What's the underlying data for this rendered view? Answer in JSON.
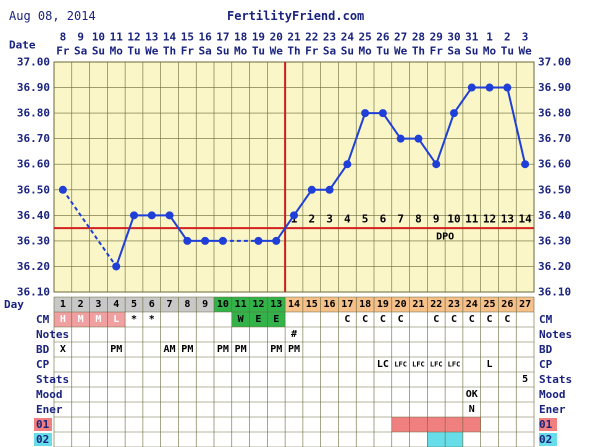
{
  "header": {
    "date": "Aug 08, 2014",
    "brand": "FertilityFriend.com"
  },
  "labels": {
    "date": "Date",
    "day": "Day",
    "dpo": "DPO",
    "rows": [
      "CM",
      "Notes",
      "BD",
      "CP",
      "Stats",
      "Mood",
      "Ener",
      "01",
      "02"
    ]
  },
  "colors": {
    "grid_bg": "#faf6c8",
    "grid_line": "#6a6a3a",
    "temp_line": "#1f3fd6",
    "coverline": "#d32020",
    "ovulation_line": "#c81e1e",
    "day_gray": "#c8c8c8",
    "day_green": "#33b24a",
    "day_orange": "#f5c08a",
    "cm_pink": "#f0a0a0",
    "cm_green": "#33b24a",
    "cm_orange": "#f5c08a",
    "row01": "#f07f7f",
    "row02": "#66dde8"
  },
  "chart_data": {
    "type": "line",
    "title": "",
    "ylim": [
      36.1,
      37.0
    ],
    "y_ticks": [
      "37.00",
      "36.90",
      "36.80",
      "36.70",
      "36.60",
      "36.50",
      "36.40",
      "36.30",
      "36.20",
      "36.10"
    ],
    "coverline": 36.35,
    "ovulation_day": 13,
    "dates": [
      "8",
      "9",
      "10",
      "11",
      "12",
      "13",
      "14",
      "15",
      "16",
      "17",
      "18",
      "19",
      "20",
      "21",
      "22",
      "23",
      "24",
      "25",
      "26",
      "27",
      "28",
      "29",
      "30",
      "31",
      "1",
      "2",
      "3"
    ],
    "weekdays": [
      "Fr",
      "Sa",
      "Su",
      "Mo",
      "Tu",
      "We",
      "Th",
      "Fr",
      "Sa",
      "Su",
      "Mo",
      "Tu",
      "We",
      "Th",
      "Fr",
      "Sa",
      "Su",
      "Mo",
      "Tu",
      "We",
      "Th",
      "Fr",
      "Sa",
      "Su",
      "Mo",
      "Tu",
      "We"
    ],
    "cycle_days": [
      "1",
      "2",
      "3",
      "4",
      "5",
      "6",
      "7",
      "8",
      "9",
      "10",
      "11",
      "12",
      "13",
      "14",
      "15",
      "16",
      "17",
      "18",
      "19",
      "20",
      "21",
      "22",
      "23",
      "24",
      "25",
      "26",
      "27"
    ],
    "dpo": [
      "",
      "",
      "",
      "",
      "",
      "",
      "",
      "",
      "",
      "",
      "",
      "",
      "",
      "1",
      "2",
      "3",
      "4",
      "5",
      "6",
      "7",
      "8",
      "9",
      "10",
      "11",
      "12",
      "13",
      "14"
    ],
    "temps": [
      36.5,
      null,
      null,
      36.2,
      36.4,
      36.4,
      36.4,
      36.3,
      36.3,
      36.3,
      null,
      36.3,
      36.3,
      36.4,
      36.5,
      36.5,
      36.6,
      36.8,
      36.8,
      36.7,
      36.7,
      36.6,
      36.8,
      36.9,
      36.9,
      36.9,
      36.6
    ],
    "day_colors": [
      "gray",
      "gray",
      "gray",
      "gray",
      "gray",
      "gray",
      "gray",
      "gray",
      "gray",
      "green",
      "green",
      "green",
      "green",
      "orange",
      "orange",
      "orange",
      "orange",
      "orange",
      "orange",
      "orange",
      "orange",
      "orange",
      "orange",
      "orange",
      "orange",
      "orange",
      "orange"
    ],
    "cm": [
      "H",
      "M",
      "M",
      "L",
      "*",
      "*",
      "",
      "",
      "",
      "",
      "W",
      "E",
      "E",
      "",
      "",
      "",
      "C",
      "C",
      "C",
      "C",
      "",
      "C",
      "C",
      "C",
      "C",
      "C",
      ""
    ],
    "cm_colors": [
      "pink",
      "pink",
      "pink",
      "pink",
      "",
      "",
      "",
      "",
      "",
      "",
      "green",
      "green",
      "green",
      "",
      "",
      "",
      "",
      "",
      "",
      "",
      "",
      "",
      "",
      "",
      "",
      "",
      ""
    ],
    "notes": [
      "",
      "",
      "",
      "",
      "",
      "",
      "",
      "",
      "",
      "",
      "",
      "",
      "",
      "#",
      "",
      "",
      "",
      "",
      "",
      "",
      "",
      "",
      "",
      "",
      "",
      "",
      ""
    ],
    "bd": [
      "X",
      "",
      "",
      "PM",
      "",
      "",
      "AM",
      "PM",
      "",
      "PM",
      "PM",
      "",
      "PM",
      "PM",
      "",
      "",
      "",
      "",
      "",
      "",
      "",
      "",
      "",
      "",
      "",
      "",
      ""
    ],
    "cp": [
      "",
      "",
      "",
      "",
      "",
      "",
      "",
      "",
      "",
      "",
      "",
      "",
      "",
      "",
      "",
      "",
      "",
      "",
      "LC",
      "LFC",
      "LFC",
      "LFC",
      "LFC",
      "",
      "L",
      "",
      ""
    ],
    "stats": [
      "",
      "",
      "",
      "",
      "",
      "",
      "",
      "",
      "",
      "",
      "",
      "",
      "",
      "",
      "",
      "",
      "",
      "",
      "",
      "",
      "",
      "",
      "",
      "",
      "",
      "",
      "5"
    ],
    "mood": [
      "",
      "",
      "",
      "",
      "",
      "",
      "",
      "",
      "",
      "",
      "",
      "",
      "",
      "",
      "",
      "",
      "",
      "",
      "",
      "",
      "",
      "",
      "",
      "OK",
      "",
      "",
      ""
    ],
    "ener": [
      "",
      "",
      "",
      "",
      "",
      "",
      "",
      "",
      "",
      "",
      "",
      "",
      "",
      "",
      "",
      "",
      "",
      "",
      "",
      "",
      "",
      "",
      "",
      "N",
      "",
      "",
      ""
    ],
    "row01": [
      false,
      false,
      false,
      false,
      false,
      false,
      false,
      false,
      false,
      false,
      false,
      false,
      false,
      false,
      false,
      false,
      false,
      false,
      false,
      true,
      true,
      true,
      true,
      true,
      false,
      false,
      false
    ],
    "row02": [
      false,
      false,
      false,
      false,
      false,
      false,
      false,
      false,
      false,
      false,
      false,
      false,
      false,
      false,
      false,
      false,
      false,
      false,
      false,
      false,
      false,
      true,
      true,
      false,
      false,
      false,
      false
    ]
  }
}
